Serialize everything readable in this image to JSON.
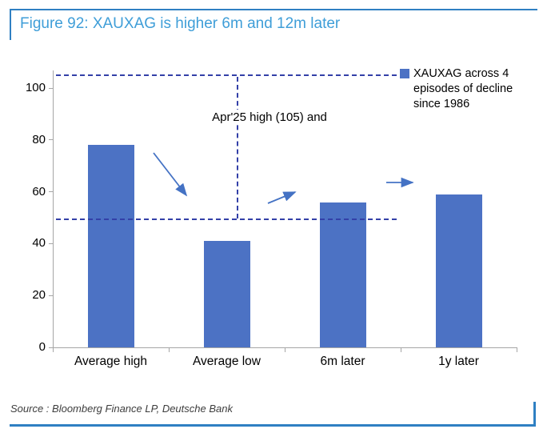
{
  "figure": {
    "title": "Figure 92: XAUXAG is higher 6m and 12m later",
    "source": "Source : Bloomberg Finance LP, Deutsche Bank"
  },
  "legend": {
    "label": "XAUXAG across 4 episodes of decline since 1986"
  },
  "annotation": "Apr'25 high (105) and",
  "colors": {
    "title_blue": "#3f9ed8",
    "frame_blue": "#2f80c3",
    "bar_blue": "#4c72c4",
    "dash_blue": "#3340a8",
    "arrow_blue": "#4472c4",
    "axis_gray": "#a6a6a6",
    "source_gray": "#3d3d3d"
  },
  "chart_data": {
    "type": "bar",
    "title": "Figure 92: XAUXAG is higher 6m and 12m later",
    "categories": [
      "Average high",
      "Average low",
      "6m later",
      "1y later"
    ],
    "values": [
      78,
      41,
      56,
      59
    ],
    "xlabel": "",
    "ylabel": "",
    "ylim": [
      0,
      107
    ],
    "yticks": [
      0,
      20,
      40,
      60,
      80,
      100
    ],
    "grid": false,
    "legend": [
      "XAUXAG across 4 episodes of decline since 1986"
    ],
    "legend_position": "top-right",
    "bar_color": "#4c72c4",
    "reference_lines": {
      "style": "dashed",
      "y_values": [
        105,
        49.5
      ],
      "vertical_connector_between": [
        105,
        49.5
      ]
    },
    "annotations": [
      "Apr'25 high (105) and"
    ],
    "arrows": [
      {
        "name": "decline-arrow",
        "from_category": "Average high",
        "to_category": "Average low",
        "direction": "down-right"
      },
      {
        "name": "recovery-arrow",
        "from_category": "Average low",
        "to_category": "6m later",
        "direction": "up-right"
      },
      {
        "name": "continuation-arrow",
        "from_category": "6m later",
        "to_category": "1y later",
        "direction": "right"
      }
    ]
  }
}
